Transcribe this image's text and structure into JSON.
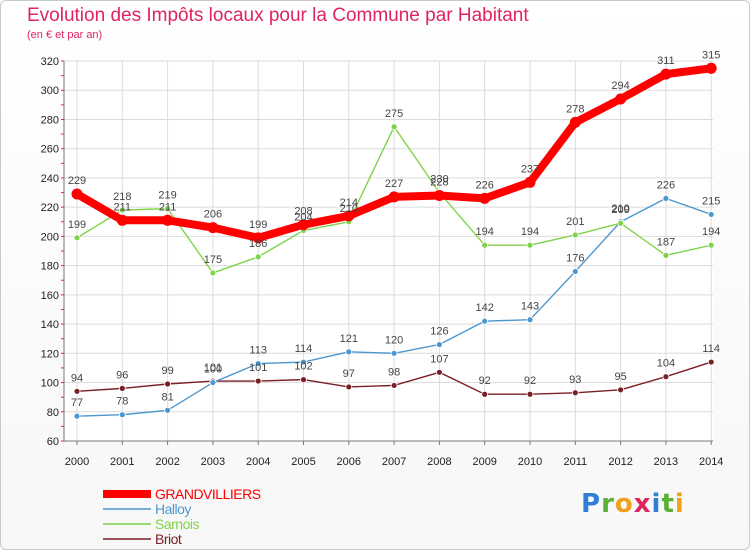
{
  "title": "Evolution des Impôts locaux pour la Commune par Habitant",
  "subtitle": "(en € et par an)",
  "logo": {
    "letters": [
      "P",
      "r",
      "o",
      "x",
      "i",
      "t",
      "i"
    ],
    "colors": [
      "#2f7fd6",
      "#5ab133",
      "#f0a01a",
      "#e0245e",
      "#2f7fd6",
      "#5ab133",
      "#f0a01a"
    ]
  },
  "chart_data": {
    "type": "line",
    "x": [
      2000,
      2001,
      2002,
      2003,
      2004,
      2005,
      2006,
      2007,
      2008,
      2009,
      2010,
      2011,
      2012,
      2013,
      2014
    ],
    "ylim": [
      60,
      320
    ],
    "yticks": [
      60,
      80,
      100,
      120,
      140,
      160,
      180,
      200,
      220,
      240,
      260,
      280,
      300,
      320
    ],
    "grid": true,
    "legend_placement": "bottom-left",
    "series": [
      {
        "name": "GRANDVILLIERS",
        "color": "#ff0000",
        "values": [
          229,
          211,
          211,
          206,
          199,
          208,
          214,
          227,
          228,
          226,
          237,
          278,
          294,
          311,
          315
        ]
      },
      {
        "name": "Halloy",
        "color": "#4d97cf",
        "values": [
          77,
          78,
          81,
          100,
          113,
          114,
          121,
          120,
          126,
          142,
          143,
          176,
          210,
          226,
          215
        ]
      },
      {
        "name": "Sarnois",
        "color": "#7fd34a",
        "values": [
          199,
          218,
          219,
          175,
          186,
          204,
          210,
          275,
          230,
          194,
          194,
          201,
          209,
          187,
          194
        ]
      },
      {
        "name": "Briot",
        "color": "#7a1f25",
        "values": [
          94,
          96,
          99,
          101,
          101,
          102,
          97,
          98,
          107,
          92,
          92,
          93,
          95,
          104,
          114
        ]
      }
    ]
  }
}
